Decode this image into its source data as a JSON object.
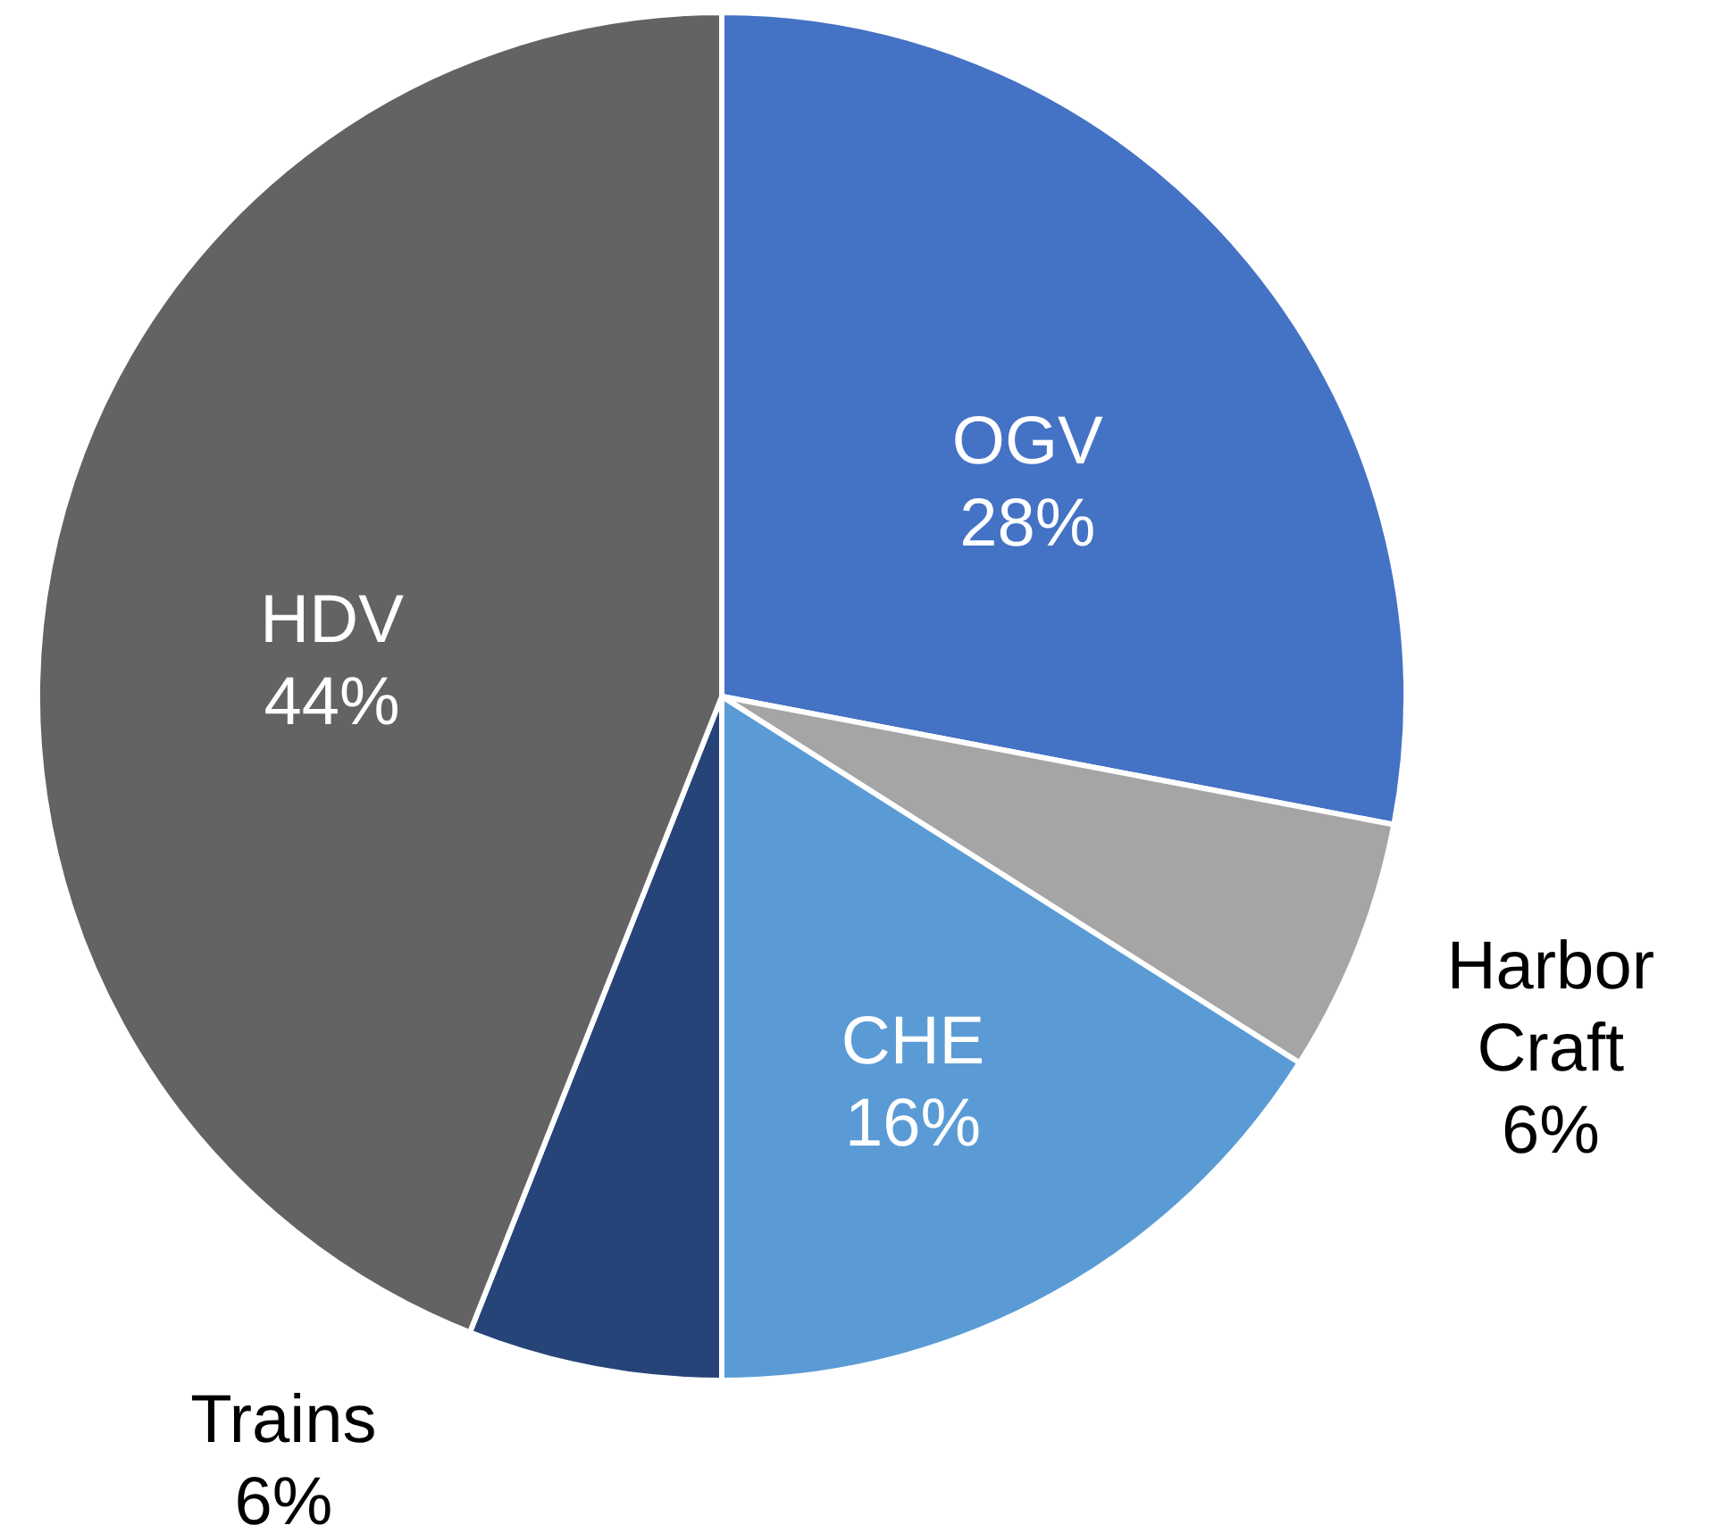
{
  "chart_data": {
    "type": "pie",
    "categories": [
      "OGV",
      "Harbor Craft",
      "CHE",
      "Trains",
      "HDV"
    ],
    "values": [
      28,
      6,
      16,
      6,
      44
    ],
    "value_labels": [
      "28%",
      "6%",
      "16%",
      "6%",
      "44%"
    ],
    "colors": [
      "#4472c4",
      "#a5a5a5",
      "#5b9bd5",
      "#264478",
      "#636363"
    ]
  }
}
